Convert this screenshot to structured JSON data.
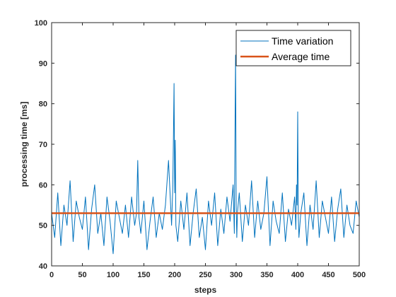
{
  "chart_data": {
    "type": "line",
    "title": "",
    "xlabel": "steps",
    "ylabel": "processing time [ms]",
    "xlim": [
      0,
      500
    ],
    "ylim": [
      40,
      100
    ],
    "xticks": [
      0,
      50,
      100,
      150,
      200,
      250,
      300,
      350,
      400,
      450,
      500
    ],
    "yticks": [
      40,
      50,
      60,
      70,
      80,
      90,
      100
    ],
    "grid": false,
    "legend_position": "top-right",
    "series": [
      {
        "name": "Time variation",
        "color": "#0072BD",
        "x": [
          0,
          5,
          10,
          15,
          20,
          25,
          30,
          35,
          40,
          45,
          50,
          55,
          60,
          65,
          70,
          75,
          80,
          85,
          90,
          95,
          100,
          105,
          110,
          115,
          120,
          125,
          130,
          135,
          138,
          140,
          142,
          145,
          150,
          155,
          160,
          165,
          170,
          175,
          180,
          185,
          190,
          195,
          197,
          198,
          199,
          200,
          201,
          202,
          205,
          210,
          215,
          220,
          225,
          230,
          235,
          240,
          245,
          250,
          255,
          260,
          265,
          270,
          275,
          280,
          285,
          290,
          295,
          297,
          298,
          299,
          300,
          301,
          302,
          305,
          310,
          315,
          320,
          325,
          330,
          335,
          340,
          345,
          350,
          355,
          360,
          365,
          370,
          375,
          380,
          385,
          390,
          395,
          397,
          398,
          399,
          400,
          401,
          402,
          405,
          410,
          415,
          420,
          425,
          430,
          435,
          440,
          445,
          450,
          455,
          460,
          465,
          470,
          475,
          480,
          485,
          490,
          495,
          500
        ],
        "values": [
          53,
          47,
          58,
          45,
          55,
          50,
          61,
          46,
          56,
          52,
          49,
          57,
          44,
          54,
          60,
          48,
          53,
          45,
          57,
          51,
          43,
          56,
          52,
          48,
          55,
          47,
          57,
          50,
          53,
          66,
          52,
          48,
          56,
          44,
          51,
          57,
          47,
          53,
          49,
          55,
          66,
          50,
          60,
          72,
          85,
          58,
          71,
          50,
          46,
          56,
          49,
          58,
          45,
          53,
          59,
          47,
          52,
          44,
          56,
          50,
          58,
          45,
          54,
          48,
          57,
          51,
          60,
          48,
          72,
          92,
          55,
          47,
          53,
          58,
          46,
          55,
          50,
          61,
          47,
          56,
          49,
          53,
          62,
          45,
          56,
          51,
          48,
          58,
          46,
          54,
          50,
          57,
          49,
          60,
          55,
          78,
          52,
          47,
          53,
          58,
          45,
          55,
          49,
          61,
          47,
          56,
          52,
          48,
          57,
          46,
          54,
          59,
          47,
          55,
          50,
          48,
          56,
          52
        ]
      },
      {
        "name": "Average time",
        "color": "#D95319",
        "x": [
          0,
          500
        ],
        "values": [
          53,
          53
        ]
      }
    ]
  }
}
